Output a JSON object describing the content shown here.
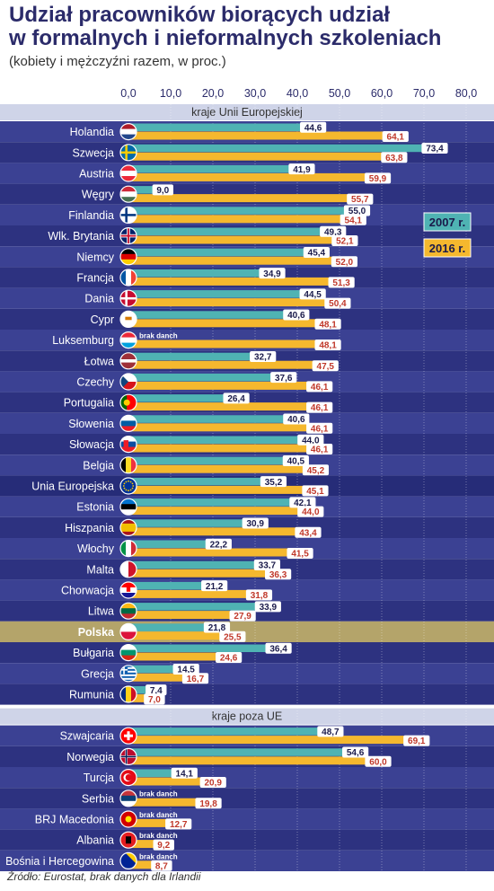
{
  "title_line1": "Udział pracowników biorących udział",
  "title_line2": "w formalnych i nieformalnych szkoleniach",
  "subtitle": "(kobiety i mężczyźni razem, w proc.)",
  "source": "Źródło: Eurostat, brak danych dla Irlandii",
  "colors": {
    "band": "#3b4193",
    "band_dark": "#2d3280",
    "highlight_eu": "#262c78",
    "highlight_pl": "#b4a46a",
    "bar2007": "#4fb3b3",
    "bar2016": "#f5b82e",
    "label2016": "#c0392b",
    "section_bg": "#cfd4e8"
  },
  "chart_data": {
    "type": "bar",
    "orientation": "horizontal",
    "xlim": [
      0,
      80
    ],
    "xticks": [
      "0,0",
      "10,0",
      "20,0",
      "30,0",
      "40,0",
      "50,0",
      "60,0",
      "70,0",
      "80,0"
    ],
    "xtick_values": [
      0,
      10,
      20,
      30,
      40,
      50,
      60,
      70,
      80
    ],
    "legend": [
      "2007 r.",
      "2016 r."
    ],
    "no_data_label": "brak danch",
    "sections": [
      {
        "label": "kraje Unii Europejskiej",
        "rows": [
          {
            "country": "Holandia",
            "v2007": 44.6,
            "v2016": 64.1,
            "l2007": "44,6",
            "l2016": "64,1",
            "flag": "nl"
          },
          {
            "country": "Szwecja",
            "v2007": 73.4,
            "v2016": 63.8,
            "l2007": "73,4",
            "l2016": "63,8",
            "flag": "se"
          },
          {
            "country": "Austria",
            "v2007": 41.9,
            "v2016": 59.9,
            "l2007": "41,9",
            "l2016": "59,9",
            "flag": "at"
          },
          {
            "country": "Węgry",
            "v2007": 9.0,
            "v2016": 55.7,
            "l2007": "9,0",
            "l2016": "55,7",
            "flag": "hu"
          },
          {
            "country": "Finlandia",
            "v2007": 55.0,
            "v2016": 54.1,
            "l2007": "55,0",
            "l2016": "54,1",
            "flag": "fi"
          },
          {
            "country": "Wlk. Brytania",
            "v2007": 49.3,
            "v2016": 52.1,
            "l2007": "49,3",
            "l2016": "52,1",
            "flag": "gb"
          },
          {
            "country": "Niemcy",
            "v2007": 45.4,
            "v2016": 52.0,
            "l2007": "45,4",
            "l2016": "52,0",
            "flag": "de"
          },
          {
            "country": "Francja",
            "v2007": 34.9,
            "v2016": 51.3,
            "l2007": "34,9",
            "l2016": "51,3",
            "flag": "fr"
          },
          {
            "country": "Dania",
            "v2007": 44.5,
            "v2016": 50.4,
            "l2007": "44,5",
            "l2016": "50,4",
            "flag": "dk"
          },
          {
            "country": "Cypr",
            "v2007": 40.6,
            "v2016": 48.1,
            "l2007": "40,6",
            "l2016": "48,1",
            "flag": "cy"
          },
          {
            "country": "Luksemburg",
            "v2007": null,
            "v2016": 48.1,
            "l2007": "brak danch",
            "l2016": "48,1",
            "flag": "lu"
          },
          {
            "country": "Łotwa",
            "v2007": 32.7,
            "v2016": 47.5,
            "l2007": "32,7",
            "l2016": "47,5",
            "flag": "lv"
          },
          {
            "country": "Czechy",
            "v2007": 37.6,
            "v2016": 46.1,
            "l2007": "37,6",
            "l2016": "46,1",
            "flag": "cz"
          },
          {
            "country": "Portugalia",
            "v2007": 26.4,
            "v2016": 46.1,
            "l2007": "26,4",
            "l2016": "46,1",
            "flag": "pt"
          },
          {
            "country": "Słowenia",
            "v2007": 40.6,
            "v2016": 46.1,
            "l2007": "40,6",
            "l2016": "46,1",
            "flag": "si"
          },
          {
            "country": "Słowacja",
            "v2007": 44.0,
            "v2016": 46.1,
            "l2007": "44,0",
            "l2016": "46,1",
            "flag": "sk"
          },
          {
            "country": "Belgia",
            "v2007": 40.5,
            "v2016": 45.2,
            "l2007": "40,5",
            "l2016": "45,2",
            "flag": "be"
          },
          {
            "country": "Unia Europejska",
            "v2007": 35.2,
            "v2016": 45.1,
            "l2007": "35,2",
            "l2016": "45,1",
            "flag": "eu",
            "highlight": "eu"
          },
          {
            "country": "Estonia",
            "v2007": 42.1,
            "v2016": 44.0,
            "l2007": "42,1",
            "l2016": "44,0",
            "flag": "ee"
          },
          {
            "country": "Hiszpania",
            "v2007": 30.9,
            "v2016": 43.4,
            "l2007": "30,9",
            "l2016": "43,4",
            "flag": "es"
          },
          {
            "country": "Włochy",
            "v2007": 22.2,
            "v2016": 41.5,
            "l2007": "22,2",
            "l2016": "41,5",
            "flag": "it"
          },
          {
            "country": "Malta",
            "v2007": 33.7,
            "v2016": 36.3,
            "l2007": "33,7",
            "l2016": "36,3",
            "flag": "mt"
          },
          {
            "country": "Chorwacja",
            "v2007": 21.2,
            "v2016": 31.8,
            "l2007": "21,2",
            "l2016": "31,8",
            "flag": "hr"
          },
          {
            "country": "Litwa",
            "v2007": 33.9,
            "v2016": 27.9,
            "l2007": "33,9",
            "l2016": "27,9",
            "flag": "lt"
          },
          {
            "country": "Polska",
            "v2007": 21.8,
            "v2016": 25.5,
            "l2007": "21,8",
            "l2016": "25,5",
            "flag": "pl",
            "highlight": "pl"
          },
          {
            "country": "Bułgaria",
            "v2007": 36.4,
            "v2016": 24.6,
            "l2007": "36,4",
            "l2016": "24,6",
            "flag": "bg"
          },
          {
            "country": "Grecja",
            "v2007": 14.5,
            "v2016": 16.7,
            "l2007": "14,5",
            "l2016": "16,7",
            "flag": "gr"
          },
          {
            "country": "Rumunia",
            "v2007": 7.4,
            "v2016": 7.0,
            "l2007": "7,4",
            "l2016": "7,0",
            "flag": "ro"
          }
        ]
      },
      {
        "label": "kraje poza UE",
        "rows": [
          {
            "country": "Szwajcaria",
            "v2007": 48.7,
            "v2016": 69.1,
            "l2007": "48,7",
            "l2016": "69,1",
            "flag": "ch"
          },
          {
            "country": "Norwegia",
            "v2007": 54.6,
            "v2016": 60.0,
            "l2007": "54,6",
            "l2016": "60,0",
            "flag": "no"
          },
          {
            "country": "Turcja",
            "v2007": 14.1,
            "v2016": 20.9,
            "l2007": "14,1",
            "l2016": "20,9",
            "flag": "tr"
          },
          {
            "country": "Serbia",
            "v2007": null,
            "v2016": 19.8,
            "l2007": "brak danch",
            "l2016": "19,8",
            "flag": "rs"
          },
          {
            "country": "BRJ Macedonia",
            "v2007": null,
            "v2016": 12.7,
            "l2007": "brak danch",
            "l2016": "12,7",
            "flag": "mk"
          },
          {
            "country": "Albania",
            "v2007": null,
            "v2016": 9.2,
            "l2007": "brak danch",
            "l2016": "9,2",
            "flag": "al"
          },
          {
            "country": "Bośnia i Hercegowina",
            "v2007": null,
            "v2016": 8.7,
            "l2007": "brak danch",
            "l2016": "8,7",
            "flag": "ba"
          }
        ]
      }
    ]
  }
}
